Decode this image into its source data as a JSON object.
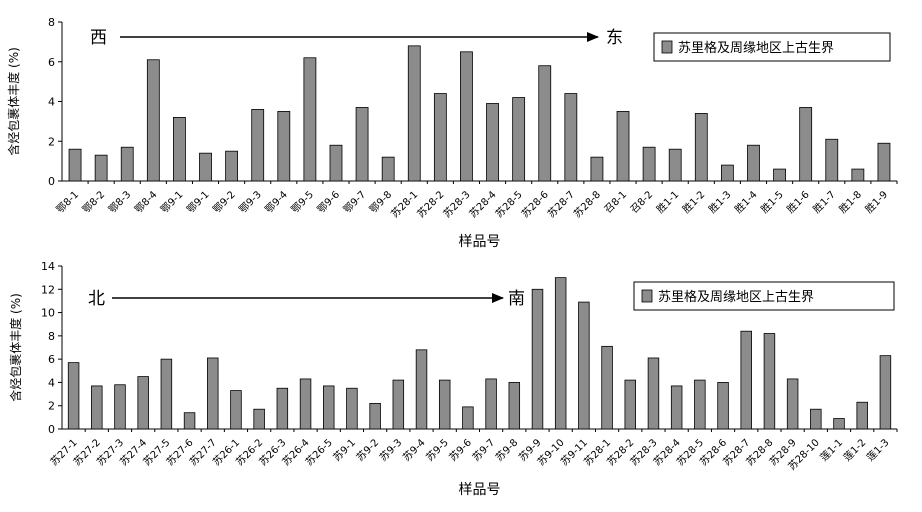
{
  "chart_data": [
    {
      "type": "bar",
      "ylabel": "含烃包裹体丰度 (%)",
      "xlabel": "样品号",
      "ylim": [
        0,
        8
      ],
      "yticks": [
        0,
        2,
        4,
        6,
        8
      ],
      "grid": false,
      "legend_position": "top-right",
      "direction_start": "西",
      "direction_end": "东",
      "categories": [
        "鄂8-1",
        "鄂8-2",
        "鄂8-3",
        "鄂8-4",
        "鄂9-1",
        "鄂9-1",
        "鄂9-2",
        "鄂9-3",
        "鄂9-4",
        "鄂9-5",
        "鄂9-6",
        "鄂9-7",
        "鄂9-8",
        "苏28-1",
        "苏28-2",
        "苏28-3",
        "苏28-4",
        "苏28-5",
        "苏28-6",
        "苏28-7",
        "苏28-8",
        "召8-1",
        "召8-2",
        "胜1-1",
        "胜1-2",
        "胜1-3",
        "胜1-4",
        "胜1-5",
        "胜1-6",
        "胜1-7",
        "胜1-8",
        "胜1-9"
      ],
      "series": [
        {
          "name": "苏里格及周缘地区上古生界",
          "values": [
            1.6,
            1.3,
            1.7,
            6.1,
            3.2,
            1.4,
            1.5,
            3.6,
            3.5,
            6.2,
            1.8,
            3.7,
            1.2,
            6.8,
            4.4,
            6.5,
            3.9,
            4.2,
            5.8,
            4.4,
            1.2,
            3.5,
            1.7,
            1.6,
            3.4,
            0.8,
            1.8,
            0.6,
            3.7,
            2.1,
            0.6,
            1.9
          ]
        }
      ]
    },
    {
      "type": "bar",
      "ylabel": "含烃包裹体丰度 (%)",
      "xlabel": "样品号",
      "ylim": [
        0,
        14
      ],
      "yticks": [
        0,
        2,
        4,
        6,
        8,
        10,
        12,
        14
      ],
      "grid": false,
      "legend_position": "top-right",
      "direction_start": "北",
      "direction_end": "南",
      "categories": [
        "苏27-1",
        "苏27-2",
        "苏27-3",
        "苏27-4",
        "苏27-5",
        "苏27-6",
        "苏27-7",
        "苏26-1",
        "苏26-2",
        "苏26-3",
        "苏26-4",
        "苏26-5",
        "苏9-1",
        "苏9-2",
        "苏9-3",
        "苏9-4",
        "苏9-5",
        "苏9-6",
        "苏9-7",
        "苏9-8",
        "苏9-9",
        "苏9-10",
        "苏9-11",
        "苏28-1",
        "苏28-2",
        "苏28-3",
        "苏28-4",
        "苏28-5",
        "苏28-6",
        "苏28-7",
        "苏28-8",
        "苏28-9",
        "苏28-10",
        "莲1-1",
        "莲1-2",
        "莲1-3"
      ],
      "series": [
        {
          "name": "苏里格及周缘地区上古生界",
          "values": [
            5.7,
            3.7,
            3.8,
            4.5,
            6.0,
            1.4,
            6.1,
            3.3,
            1.7,
            3.5,
            4.3,
            3.7,
            3.5,
            2.2,
            4.2,
            6.8,
            4.2,
            1.9,
            4.3,
            4.0,
            12.0,
            13.0,
            10.9,
            7.1,
            4.2,
            6.1,
            3.7,
            4.2,
            4.0,
            8.4,
            8.2,
            4.3,
            1.7,
            0.9,
            2.3,
            6.3
          ]
        }
      ]
    }
  ]
}
